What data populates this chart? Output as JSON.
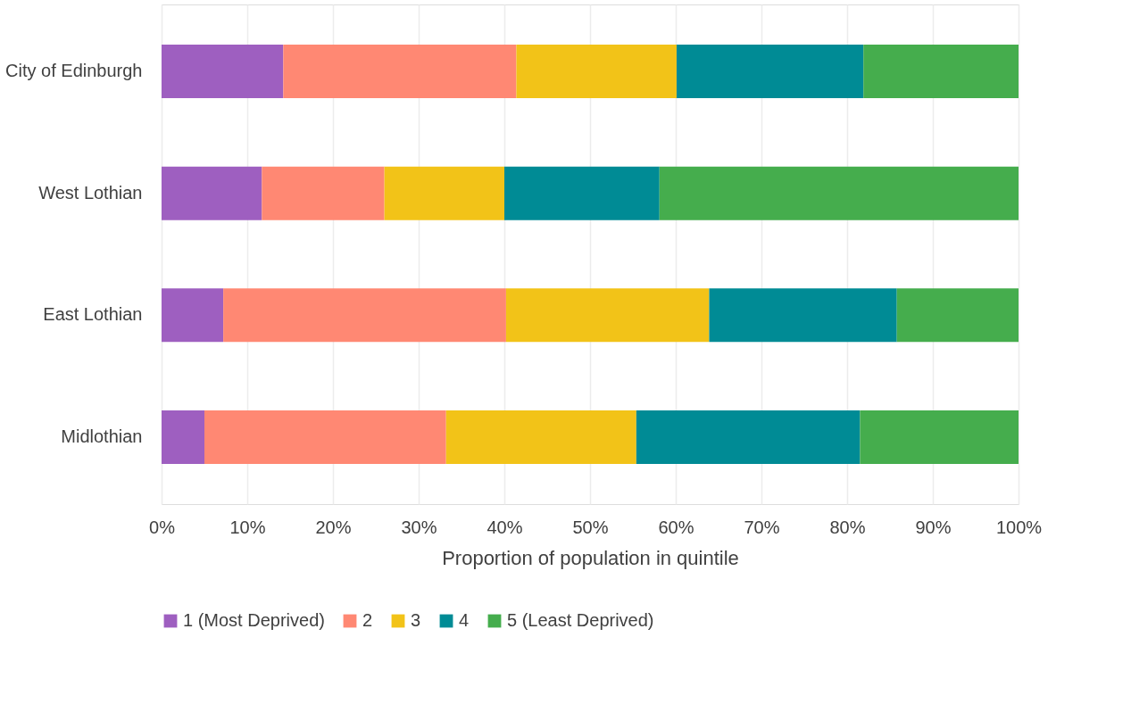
{
  "chart_data": {
    "type": "bar",
    "orientation": "horizontal",
    "stacked": true,
    "categories": [
      "City of Edinburgh",
      "West Lothian",
      "East Lothian",
      "Midlothian"
    ],
    "series": [
      {
        "name": "1 (Most Deprived)",
        "color": "#9e5fc0",
        "values": [
          14.2,
          11.7,
          7.2,
          5.0
        ]
      },
      {
        "name": "2",
        "color": "#ff8873",
        "values": [
          27.2,
          14.3,
          33.0,
          28.2
        ]
      },
      {
        "name": "3",
        "color": "#f2c318",
        "values": [
          18.7,
          14.0,
          23.7,
          22.2
        ]
      },
      {
        "name": "4",
        "color": "#008b95",
        "values": [
          21.8,
          18.1,
          21.9,
          26.1
        ]
      },
      {
        "name": "5 (Least Deprived)",
        "color": "#45ad4d",
        "values": [
          18.1,
          41.9,
          14.2,
          18.5
        ]
      }
    ],
    "xlabel": "Proportion of population in quintile",
    "xlim": [
      0,
      100
    ],
    "xticks": [
      {
        "value": 0,
        "label": "0%"
      },
      {
        "value": 10,
        "label": "10%"
      },
      {
        "value": 20,
        "label": "20%"
      },
      {
        "value": 30,
        "label": "30%"
      },
      {
        "value": 40,
        "label": "40%"
      },
      {
        "value": 50,
        "label": "50%"
      },
      {
        "value": 60,
        "label": "60%"
      },
      {
        "value": 70,
        "label": "70%"
      },
      {
        "value": 80,
        "label": "80%"
      },
      {
        "value": 90,
        "label": "90%"
      },
      {
        "value": 100,
        "label": "100%"
      }
    ],
    "grid": "x",
    "legend": "bottom"
  }
}
